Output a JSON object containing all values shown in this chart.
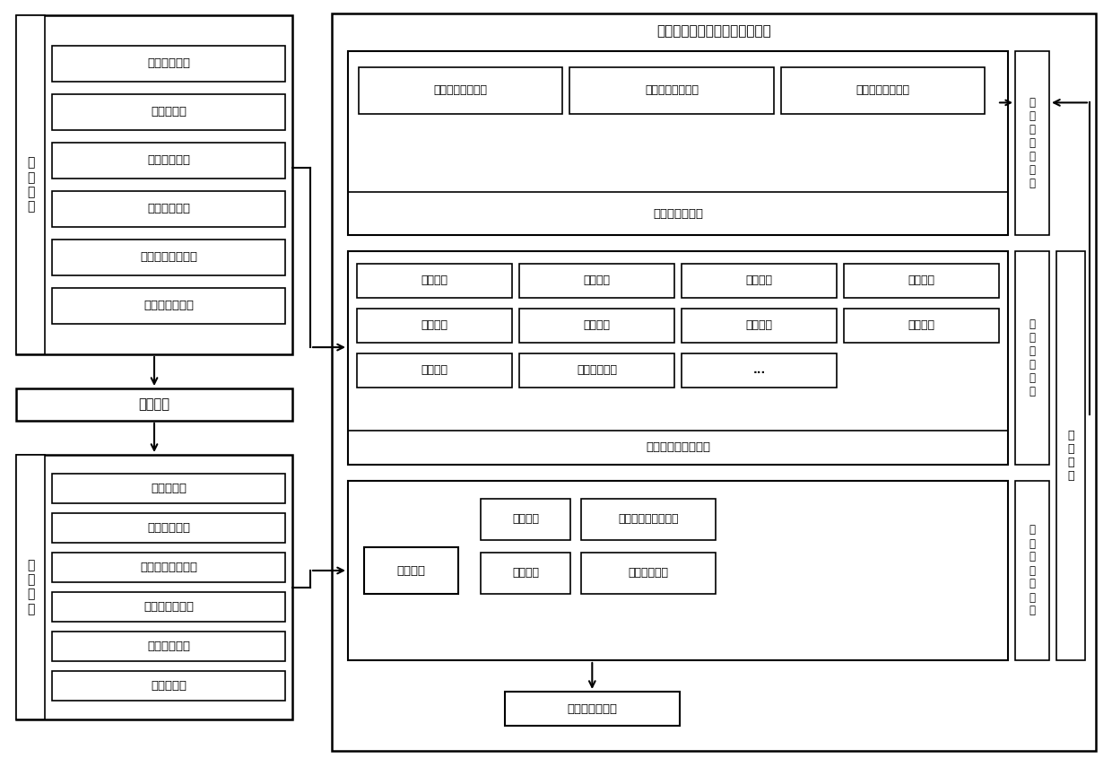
{
  "title": "废铅蓄电池完整性快速识别平台",
  "bg_color": "#ffffff",
  "left_col_label1": "电\n池\n出\n厂",
  "left_col_label2": "电\n池\n回\n收",
  "factory_steps": [
    "尺寸和重量录入",
    "六面照片拍摄上传",
    "其他信息录入",
    "生成产品编码",
    "二维码生成",
    "电子标签写入"
  ],
  "battery_use": "电池使用",
  "recycle_steps": [
    "扫描二维码",
    "读取电子标签",
    "尺寸和重量录入",
    "六面照片拍摄上传",
    "破损部位录入",
    "完整性分析"
  ],
  "rule_boxes": [
    "出厂回收重量差异",
    "出厂回收尺寸差异",
    "出厂回收外观差异"
  ],
  "rule_label": "完整性判别规则",
  "rule_module": "基\n础\n知\n识\n库\n模\n块",
  "db_row1": [
    "产品编码",
    "产品尺寸",
    "产品重量",
    "产品图片"
  ],
  "db_row2": [
    "产品型号",
    "生产批次",
    "生产日期",
    "生产厂家"
  ],
  "db_row3": [
    "使用寿命",
    "含铅酸液占比",
    "..."
  ],
  "db_label": "铅蓄电池产品数据库",
  "db_module": "信\n息\n存\n储\n模\n块",
  "recog_top_left": "产品识别",
  "recog_top_right": "标签信息存储区分析",
  "recog_bot_left": "尺寸匹配",
  "recog_bot_right": "外观照片对比",
  "recog_left": "重量匹配",
  "recog_module": "完\n整\n性\n识\n别\n模\n块",
  "result_box": "完整性识别结果",
  "backup_module": "后\n备\n规\n则",
  "font_size": 9,
  "title_font_size": 11
}
